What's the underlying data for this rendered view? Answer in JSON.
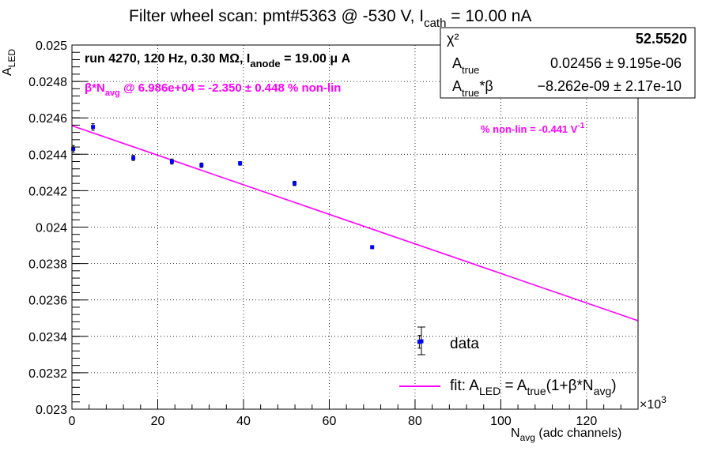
{
  "colors": {
    "data": "#0000ff",
    "fit": "#ff00ff",
    "axis": "#000000"
  },
  "chart_data": {
    "type": "scatter",
    "title": {
      "main": "Filter wheel scan: pmt#5363 @  -530 V, I",
      "sub": "cath",
      "tail": " = 10.00 nA"
    },
    "xlabel": {
      "main": "N",
      "sub": "avg",
      "tail": " (adc channels)"
    },
    "ylabel": {
      "main": "A",
      "sub": "LED"
    },
    "x_exponent": "×10",
    "x_exponent_power": "3",
    "xlim": [
      0,
      132
    ],
    "ylim": [
      0.023,
      0.025
    ],
    "x_ticks": [
      0,
      20,
      40,
      60,
      80,
      100,
      120
    ],
    "x_tick_labels": [
      "0",
      "20",
      "40",
      "60",
      "80",
      "100",
      "120"
    ],
    "y_ticks": [
      0.023,
      0.0232,
      0.0234,
      0.0236,
      0.0238,
      0.024,
      0.0242,
      0.0244,
      0.0246,
      0.0248,
      0.025
    ],
    "y_tick_labels": [
      "0.023",
      "0.0232",
      "0.0234",
      "0.0236",
      "0.0238",
      "0.024",
      "0.0242",
      "0.0244",
      "0.0246",
      "0.0248",
      "0.025"
    ],
    "grid": true,
    "series": [
      {
        "name": "data",
        "x": [
          0.3,
          4.9,
          14.3,
          23.3,
          30.2,
          39.2,
          51.9,
          70.0,
          81.0
        ],
        "y": [
          0.02443,
          0.02455,
          0.02438,
          0.02436,
          0.02434,
          0.02435,
          0.02424,
          0.02389,
          0.02337
        ],
        "yerr": [
          1.8e-05,
          1.8e-05,
          1.4e-05,
          1.4e-05,
          1.2e-05,
          1e-05,
          1.2e-05,
          8e-06,
          3.5e-05
        ]
      },
      {
        "name": "fit",
        "type": "line",
        "x": [
          0,
          132
        ],
        "y": [
          0.024557,
          0.023486
        ]
      }
    ],
    "annotations": {
      "run_line": {
        "main": "run 4270, 120 Hz, 0.30 MΩ, I",
        "sub": "anode",
        "tail": " = 19.00 μ A"
      },
      "beta_line": {
        "pre": "β*N",
        "sub": "avg",
        "tail": " @ 6.986e+04 = -2.350 ± 0.448 % non-lin"
      },
      "nonlin_line": {
        "main": "% non-lin = -0.441 V",
        "sup": "-1"
      }
    },
    "stats_box": {
      "chi2_label": "χ²",
      "chi2_value": "52.5520",
      "atrue_label": "A",
      "atrue_sub": "true",
      "atrue_value": "0.02456 ± 9.195e-06",
      "atb_label": "A",
      "atb_sub": "true",
      "atb_tail": "*β",
      "atb_value": "−8.262e-09 ± 2.17e-10"
    },
    "legend": {
      "placement": "bottom-right",
      "data_label": "data",
      "fit_label": {
        "pre": "fit: A",
        "sub1": "LED",
        "mid": " = A",
        "sub2": "true",
        "mid2": "(1+β*N",
        "sub3": "avg",
        "tail": ")"
      }
    }
  }
}
